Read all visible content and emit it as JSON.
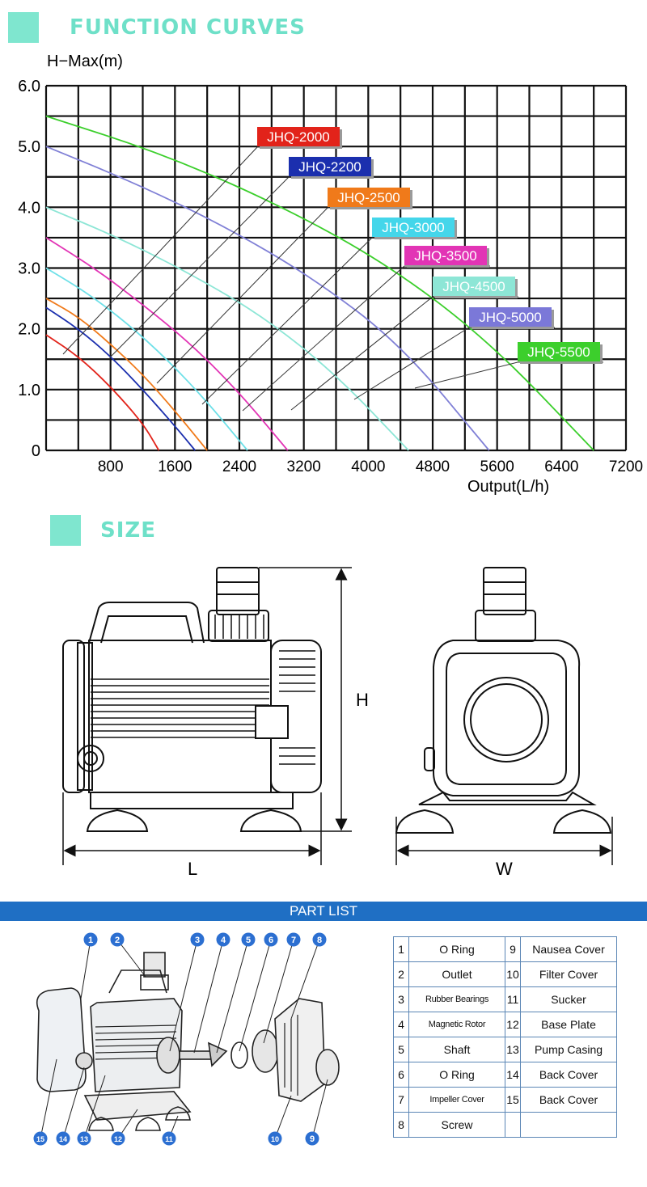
{
  "function_section": {
    "title": "FUNCTION CURVES"
  },
  "chart_data": {
    "type": "line",
    "xlabel": "Output(L/h)",
    "ylabel": "H−Max(m)",
    "xlim": [
      0,
      7200
    ],
    "ylim": [
      0,
      6.0
    ],
    "x_ticks": [
      "800",
      "1600",
      "2400",
      "3200",
      "4000",
      "4800",
      "5600",
      "6400",
      "7200"
    ],
    "y_ticks": [
      "0",
      "1.0",
      "2.0",
      "3.0",
      "4.0",
      "5.0",
      "6.0"
    ],
    "grid": true,
    "series": [
      {
        "name": "JHQ-2000",
        "color": "#e2231a",
        "label_color": "#e2231a",
        "hmax": 1.9,
        "qmax": 1400,
        "points": [
          [
            0,
            1.9
          ],
          [
            400,
            1.55
          ],
          [
            800,
            1.05
          ],
          [
            1200,
            0.45
          ],
          [
            1400,
            0
          ]
        ]
      },
      {
        "name": "JHQ-2200",
        "color": "#1b2fae",
        "label_color": "#1b2fae",
        "hmax": 2.35,
        "qmax": 1850,
        "points": [
          [
            0,
            2.35
          ],
          [
            400,
            2.0
          ],
          [
            800,
            1.55
          ],
          [
            1200,
            1.0
          ],
          [
            1600,
            0.4
          ],
          [
            1850,
            0
          ]
        ]
      },
      {
        "name": "JHQ-2500",
        "color": "#f07a1a",
        "label_color": "#f07a1a",
        "hmax": 2.5,
        "qmax": 2000,
        "points": [
          [
            0,
            2.5
          ],
          [
            400,
            2.2
          ],
          [
            800,
            1.75
          ],
          [
            1200,
            1.25
          ],
          [
            1600,
            0.65
          ],
          [
            2000,
            0
          ]
        ]
      },
      {
        "name": "JHQ-3000",
        "color": "#6ee0e8",
        "label_color": "#44d6ea",
        "hmax": 3.0,
        "qmax": 2500,
        "points": [
          [
            0,
            3.0
          ],
          [
            500,
            2.6
          ],
          [
            1000,
            2.1
          ],
          [
            1500,
            1.5
          ],
          [
            2000,
            0.8
          ],
          [
            2500,
            0
          ]
        ]
      },
      {
        "name": "JHQ-3500",
        "color": "#e234b5",
        "label_color": "#e234b5",
        "hmax": 3.5,
        "qmax": 3000,
        "points": [
          [
            0,
            3.5
          ],
          [
            600,
            3.0
          ],
          [
            1200,
            2.4
          ],
          [
            1800,
            1.75
          ],
          [
            2400,
            0.95
          ],
          [
            3000,
            0
          ]
        ]
      },
      {
        "name": "JHQ-4500",
        "color": "#8de6d6",
        "label_color": "#8de6d6",
        "hmax": 4.0,
        "qmax": 4500,
        "points": [
          [
            0,
            4.0
          ],
          [
            900,
            3.5
          ],
          [
            1800,
            2.9
          ],
          [
            2700,
            2.2
          ],
          [
            3600,
            1.25
          ],
          [
            4500,
            0
          ]
        ]
      },
      {
        "name": "JHQ-5000",
        "color": "#8080d6",
        "label_color": "#7b78d8",
        "hmax": 5.0,
        "qmax": 5500,
        "points": [
          [
            0,
            5.0
          ],
          [
            1100,
            4.4
          ],
          [
            2200,
            3.7
          ],
          [
            3300,
            2.85
          ],
          [
            4400,
            1.75
          ],
          [
            5500,
            0
          ]
        ]
      },
      {
        "name": "JHQ-5500",
        "color": "#3ccf2c",
        "label_color": "#3ccf2c",
        "hmax": 5.5,
        "qmax": 6800,
        "points": [
          [
            0,
            5.5
          ],
          [
            1400,
            4.9
          ],
          [
            2800,
            4.1
          ],
          [
            4200,
            3.1
          ],
          [
            5500,
            1.8
          ],
          [
            6800,
            0
          ]
        ]
      }
    ]
  },
  "size_section": {
    "title": "SIZE",
    "dim_h": "H",
    "dim_l": "L",
    "dim_w": "W"
  },
  "part_list": {
    "title": "PART LIST",
    "rows": [
      {
        "n1": "1",
        "p1": "O Ring",
        "n2": "9",
        "p2": "Nausea Cover"
      },
      {
        "n1": "2",
        "p1": "Outlet",
        "n2": "10",
        "p2": "Filter Cover"
      },
      {
        "n1": "3",
        "p1": "Rubber Bearings",
        "n2": "11",
        "p2": "Sucker"
      },
      {
        "n1": "4",
        "p1": "Magnetic Rotor",
        "n2": "12",
        "p2": "Base Plate"
      },
      {
        "n1": "5",
        "p1": "Shaft",
        "n2": "13",
        "p2": "Pump Casing"
      },
      {
        "n1": "6",
        "p1": "O Ring",
        "n2": "14",
        "p2": "Back Cover"
      },
      {
        "n1": "7",
        "p1": "Impeller Cover",
        "n2": "15",
        "p2": "Back Cover"
      },
      {
        "n1": "8",
        "p1": "Screw",
        "n2": "",
        "p2": ""
      }
    ],
    "callouts": [
      "1",
      "2",
      "3",
      "4",
      "5",
      "6",
      "7",
      "8",
      "9",
      "10",
      "11",
      "12",
      "13",
      "14",
      "15"
    ]
  }
}
